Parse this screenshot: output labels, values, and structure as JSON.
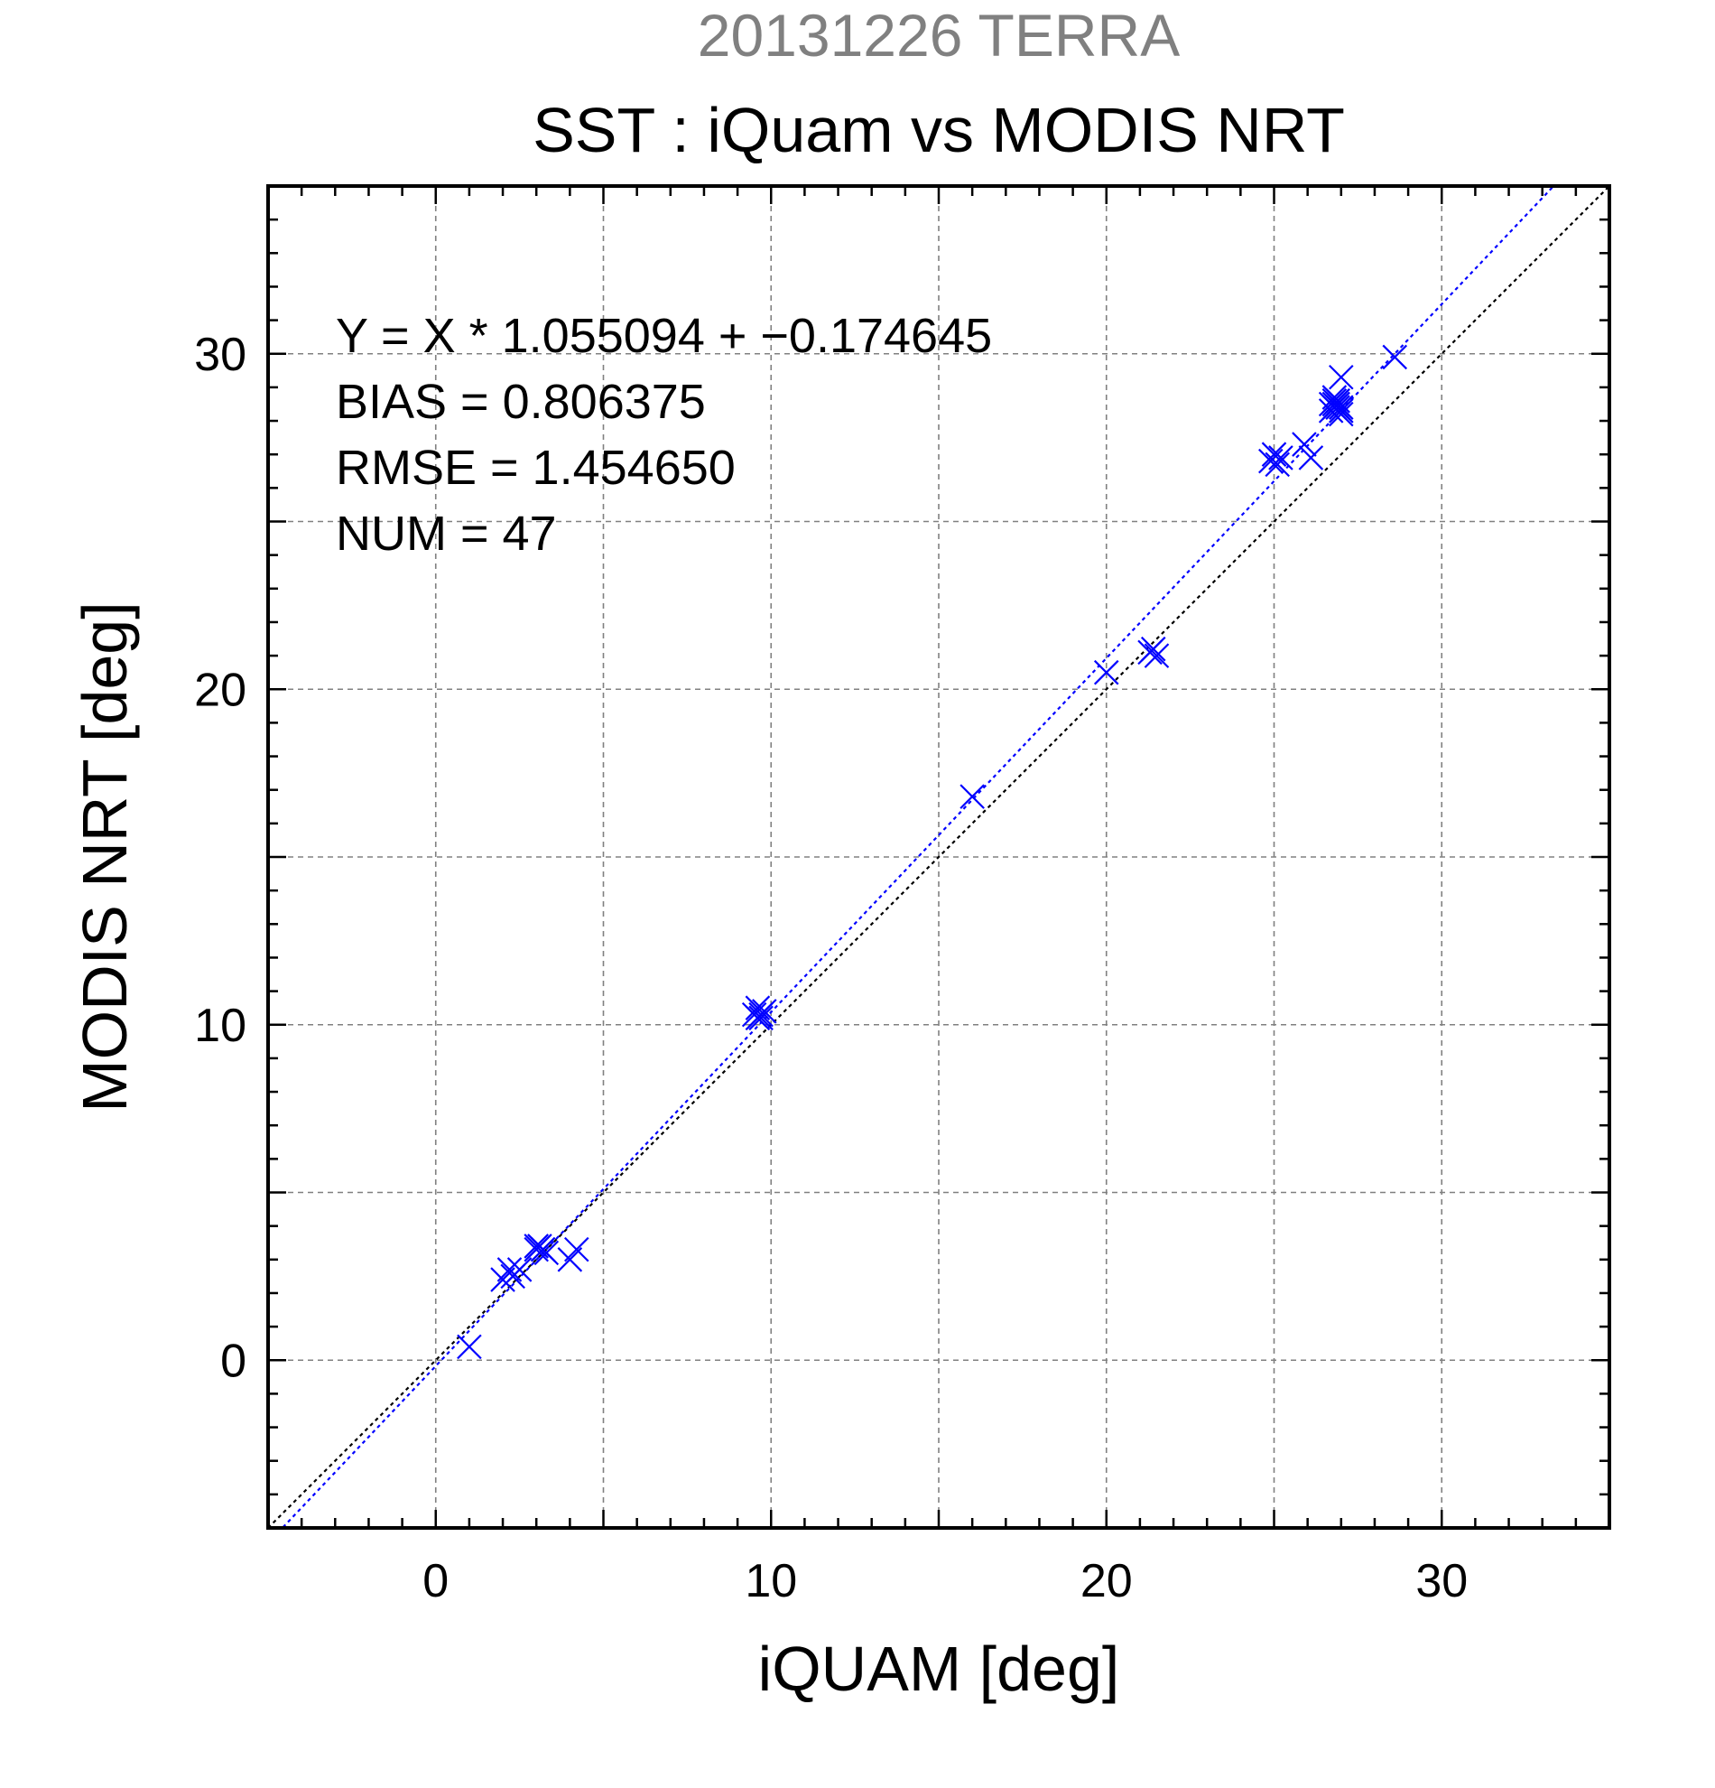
{
  "chart_data": {
    "type": "scatter",
    "supertitle": "20131226 TERRA",
    "title": "SST : iQuam vs MODIS NRT",
    "xlabel": "iQUAM [deg]",
    "ylabel": "MODIS NRT [deg]",
    "xlim": [
      -5,
      35
    ],
    "ylim": [
      -5,
      35
    ],
    "xticks": [
      0,
      10,
      20,
      30
    ],
    "yticks": [
      0,
      10,
      20,
      30
    ],
    "grid": true,
    "stats": [
      "Y = X * 1.055094 + −0.174645",
      "BIAS = 0.806375",
      "RMSE = 1.454650",
      "NUM = 47"
    ],
    "fit_line": {
      "slope": 1.055094,
      "intercept": -0.174645
    },
    "reference_line": {
      "slope": 1,
      "intercept": 0
    },
    "colors": {
      "points": "#0000ff",
      "fit": "#0000ff",
      "reference": "#000000",
      "grid": "#808080",
      "supertitle": "#808080"
    },
    "series": [
      {
        "x": [
          1.0,
          2.0,
          2.2,
          2.3,
          2.5,
          3.0,
          3.1,
          3.2,
          3.3,
          3.0,
          3.2,
          4.0,
          4.2,
          9.5,
          9.6,
          9.7,
          9.8,
          9.6,
          9.7,
          16.0,
          20.0,
          21.3,
          21.4,
          21.5,
          24.9,
          25.0,
          25.1,
          25.2,
          25.9,
          26.1,
          26.7,
          26.8,
          26.9,
          27.0,
          26.8,
          26.9,
          27.0,
          26.7,
          26.8,
          26.9,
          27.0,
          27.0,
          26.9,
          26.8,
          27.0,
          26.9,
          28.6
        ],
        "y": [
          0.4,
          2.4,
          2.7,
          2.5,
          2.7,
          3.3,
          3.4,
          3.3,
          3.2,
          3.4,
          3.3,
          3.0,
          3.3,
          10.3,
          10.5,
          10.2,
          10.4,
          10.2,
          10.3,
          16.8,
          20.5,
          21.1,
          21.2,
          21.0,
          26.8,
          27.0,
          26.7,
          26.9,
          27.3,
          26.9,
          28.5,
          28.4,
          28.6,
          28.3,
          28.7,
          28.5,
          28.4,
          28.3,
          28.6,
          28.5,
          28.2,
          29.3,
          28.4,
          28.5,
          28.3,
          28.6,
          29.9
        ]
      }
    ]
  }
}
